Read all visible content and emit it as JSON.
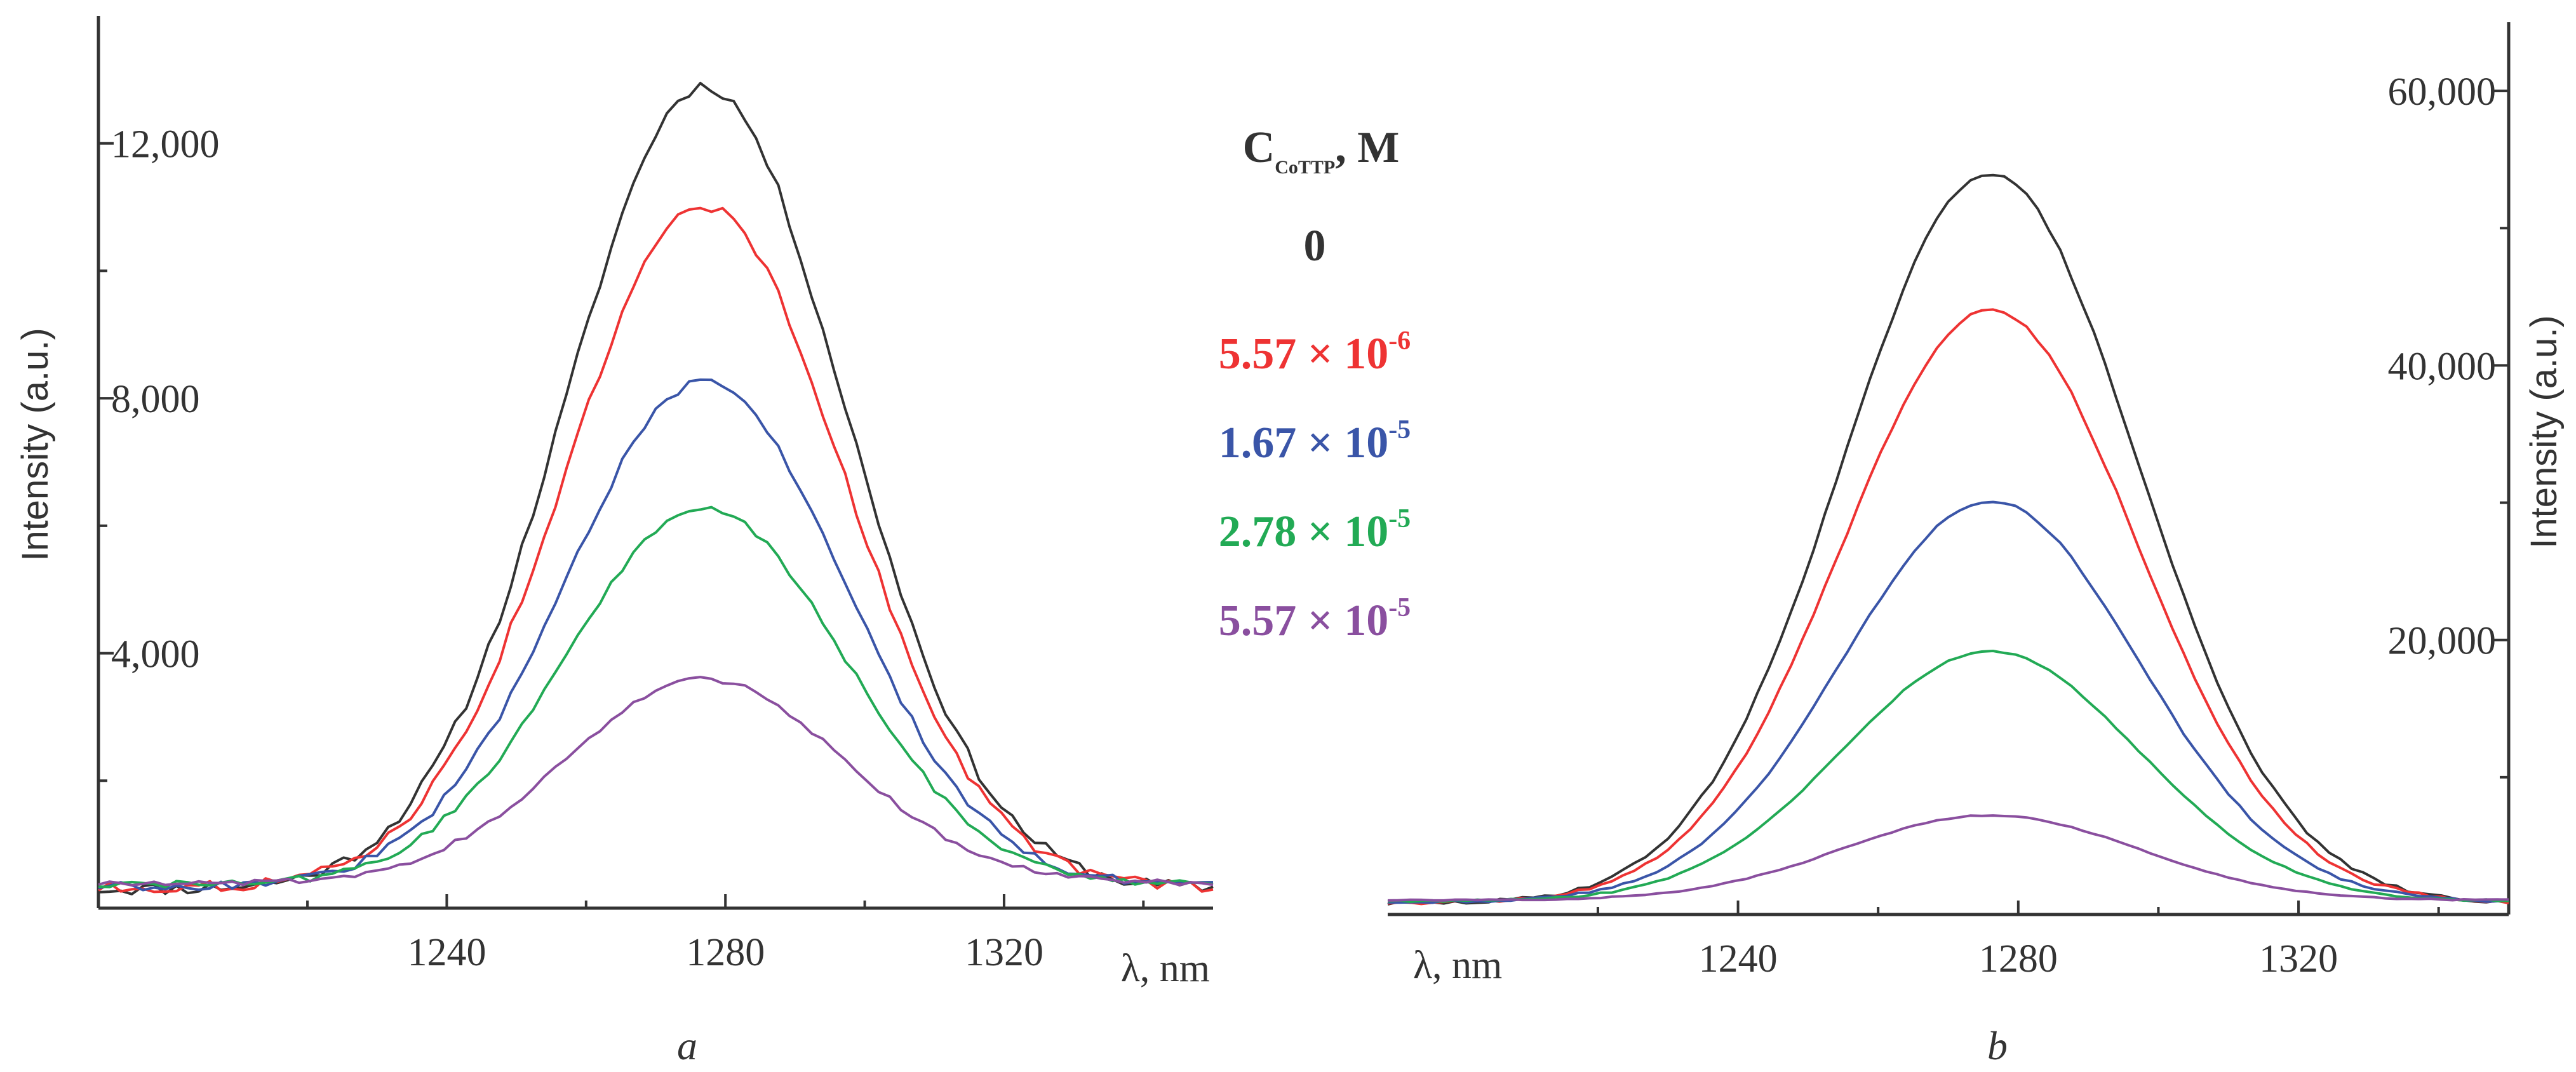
{
  "chart_data": [
    {
      "type": "line",
      "panel_label": "a",
      "xlabel": "λ, nm",
      "ylabel": "Intensity (a.u.)",
      "xlim": [
        1190,
        1350
      ],
      "ylim": [
        0,
        14000
      ],
      "x_ticks": [
        1240,
        1280,
        1320
      ],
      "x_tick_labels": [
        "1240",
        "1280",
        "1320"
      ],
      "y_ticks": [
        4000,
        8000,
        12000
      ],
      "y_tick_labels": [
        "4,000",
        "8,000",
        "12,000"
      ],
      "y_minor_ticks": [
        2000,
        6000,
        10000
      ],
      "peak_x": 1277,
      "width": 20,
      "baseline": 300,
      "series": [
        {
          "name": "0",
          "color": "#333333",
          "peak": 12900
        },
        {
          "name": "5.57 × 10-6",
          "color": "#ee3333",
          "peak": 11000
        },
        {
          "name": "1.67 × 10-5",
          "color": "#3a55a8",
          "peak": 8200
        },
        {
          "name": "2.78 × 10-5",
          "color": "#22aa55",
          "peak": 6200
        },
        {
          "name": "5.57 × 10-5",
          "color": "#8a4f9f",
          "peak": 3500
        }
      ]
    },
    {
      "type": "line",
      "panel_label": "b",
      "xlabel": "λ, nm",
      "ylabel": "Intensity (a.u.)",
      "xlim": [
        1190,
        1350
      ],
      "ylim": [
        0,
        65000
      ],
      "x_ticks": [
        1240,
        1280,
        1320
      ],
      "x_tick_labels": [
        "1240",
        "1280",
        "1320"
      ],
      "y_ticks": [
        20000,
        40000,
        60000
      ],
      "y_tick_labels": [
        "20,000",
        "40,000",
        "60,000"
      ],
      "y_minor_ticks": [
        10000,
        30000,
        50000
      ],
      "peak_x": 1276,
      "width": 21,
      "baseline": 800,
      "series": [
        {
          "name": "0",
          "color": "#333333",
          "peak": 54000
        },
        {
          "name": "5.57 × 10-6",
          "color": "#ee3333",
          "peak": 44000
        },
        {
          "name": "1.67 × 10-5",
          "color": "#3a55a8",
          "peak": 30000
        },
        {
          "name": "2.78 × 10-5",
          "color": "#22aa55",
          "peak": 19000
        },
        {
          "name": "5.57 × 10-5",
          "color": "#8a4f9f",
          "peak": 7000
        }
      ]
    }
  ],
  "legend": {
    "title_main": "C",
    "title_sub": "CoTTP",
    "title_rest": ", M",
    "entries": [
      {
        "mantissa": "0",
        "times": "",
        "base": "",
        "exponent": "",
        "color": "#333333"
      },
      {
        "mantissa": "5.57",
        "times": " × ",
        "base": "10",
        "exponent": "-6",
        "color": "#ee3333"
      },
      {
        "mantissa": "1.67",
        "times": " × ",
        "base": "10",
        "exponent": "-5",
        "color": "#3a55a8"
      },
      {
        "mantissa": "2.78",
        "times": " × ",
        "base": "10",
        "exponent": "-5",
        "color": "#22aa55"
      },
      {
        "mantissa": "5.57",
        "times": " × ",
        "base": "10",
        "exponent": "-5",
        "color": "#8a4f9f"
      }
    ]
  }
}
